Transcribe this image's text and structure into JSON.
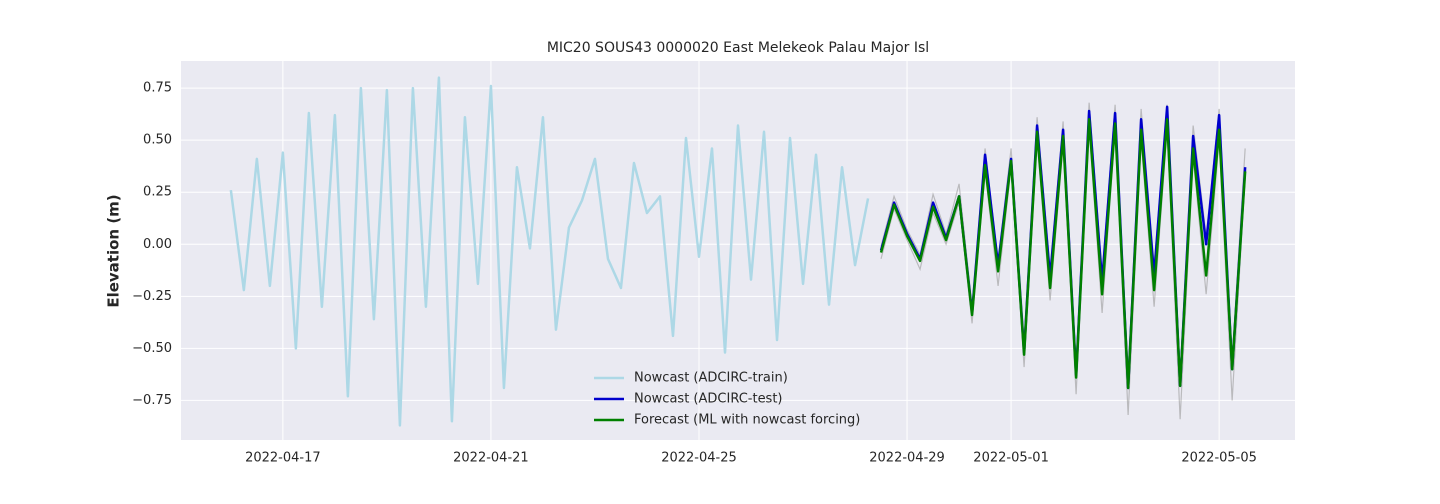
{
  "chart_data": {
    "type": "line",
    "title": "MIC20 SOUS43 0000020 East Melekeok Palau Major Isl",
    "y_label": "Elevation (m)",
    "xlim": [
      "2022-04-15T01:00",
      "2022-05-06T11:00"
    ],
    "xticks": [
      "2022-04-17",
      "2022-04-21",
      "2022-04-25",
      "2022-04-29",
      "2022-05-01",
      "2022-05-05"
    ],
    "ylim": [
      -0.94,
      0.88
    ],
    "yticks": [
      {
        "value": -0.75,
        "label": "−0.75"
      },
      {
        "value": -0.5,
        "label": "−0.50"
      },
      {
        "value": -0.25,
        "label": "−0.25"
      },
      {
        "value": 0,
        "label": "0.00"
      },
      {
        "value": 0.25,
        "label": "0.25"
      },
      {
        "value": 0.5,
        "label": "0.50"
      },
      {
        "value": 0.75,
        "label": "0.75"
      }
    ],
    "grid": true,
    "legend": "lower center",
    "band": {
      "color": "#999999",
      "x": [
        "2022-04-28T12:00",
        "2022-04-28T18:00",
        "2022-04-29T00:00",
        "2022-04-29T06:00",
        "2022-04-29T12:00",
        "2022-04-29T18:00",
        "2022-04-30T00:00",
        "2022-04-30T06:00",
        "2022-04-30T12:00",
        "2022-04-30T18:00",
        "2022-05-01T00:00",
        "2022-05-01T06:00",
        "2022-05-01T12:00",
        "2022-05-01T18:00",
        "2022-05-02T00:00",
        "2022-05-02T06:00",
        "2022-05-02T12:00",
        "2022-05-02T18:00",
        "2022-05-03T00:00",
        "2022-05-03T06:00",
        "2022-05-03T12:00",
        "2022-05-03T18:00",
        "2022-05-04T00:00",
        "2022-05-04T06:00",
        "2022-05-04T12:00",
        "2022-05-04T18:00",
        "2022-05-05T00:00",
        "2022-05-05T06:00",
        "2022-05-05T12:00"
      ],
      "upper": [
        -0.01,
        0.23,
        0.07,
        -0.05,
        0.24,
        0.05,
        0.29,
        -0.3,
        0.46,
        -0.08,
        0.46,
        -0.46,
        0.61,
        -0.12,
        0.59,
        -0.58,
        0.68,
        -0.14,
        0.67,
        -0.62,
        0.65,
        -0.1,
        0.67,
        -0.62,
        0.57,
        0.04,
        0.65,
        -0.55,
        0.46
      ],
      "lower": [
        -0.07,
        0.17,
        0.02,
        -0.12,
        0.15,
        0.0,
        0.2,
        -0.38,
        0.35,
        -0.2,
        0.37,
        -0.59,
        0.5,
        -0.27,
        0.48,
        -0.72,
        0.56,
        -0.33,
        0.55,
        -0.82,
        0.5,
        -0.3,
        0.55,
        -0.84,
        0.42,
        -0.24,
        0.5,
        -0.75,
        0.33
      ]
    },
    "series": [
      {
        "name": "Nowcast (ADCIRC-train)",
        "color": "#add8e6",
        "x": [
          "2022-04-16T00:00",
          "2022-04-16T06:00",
          "2022-04-16T12:00",
          "2022-04-16T18:00",
          "2022-04-17T00:00",
          "2022-04-17T06:00",
          "2022-04-17T12:00",
          "2022-04-17T18:00",
          "2022-04-18T00:00",
          "2022-04-18T06:00",
          "2022-04-18T12:00",
          "2022-04-18T18:00",
          "2022-04-19T00:00",
          "2022-04-19T06:00",
          "2022-04-19T12:00",
          "2022-04-19T18:00",
          "2022-04-20T00:00",
          "2022-04-20T06:00",
          "2022-04-20T12:00",
          "2022-04-20T18:00",
          "2022-04-21T00:00",
          "2022-04-21T06:00",
          "2022-04-21T12:00",
          "2022-04-21T18:00",
          "2022-04-22T00:00",
          "2022-04-22T06:00",
          "2022-04-22T12:00",
          "2022-04-22T18:00",
          "2022-04-23T00:00",
          "2022-04-23T06:00",
          "2022-04-23T12:00",
          "2022-04-23T18:00",
          "2022-04-24T00:00",
          "2022-04-24T06:00",
          "2022-04-24T12:00",
          "2022-04-24T18:00",
          "2022-04-25T00:00",
          "2022-04-25T06:00",
          "2022-04-25T12:00",
          "2022-04-25T18:00",
          "2022-04-26T00:00",
          "2022-04-26T06:00",
          "2022-04-26T12:00",
          "2022-04-26T18:00",
          "2022-04-27T00:00",
          "2022-04-27T06:00",
          "2022-04-27T12:00",
          "2022-04-27T18:00",
          "2022-04-28T00:00",
          "2022-04-28T06:00"
        ],
        "values": [
          0.26,
          -0.22,
          0.41,
          -0.2,
          0.44,
          -0.5,
          0.63,
          -0.3,
          0.62,
          -0.73,
          0.75,
          -0.36,
          0.74,
          -0.87,
          0.75,
          -0.3,
          0.8,
          -0.85,
          0.61,
          -0.19,
          0.76,
          -0.69,
          0.37,
          -0.02,
          0.61,
          -0.41,
          0.08,
          0.21,
          0.41,
          -0.07,
          -0.21,
          0.39,
          0.15,
          0.23,
          -0.44,
          0.51,
          -0.06,
          0.46,
          -0.52,
          0.57,
          -0.17,
          0.54,
          -0.46,
          0.51,
          -0.19,
          0.43,
          -0.29,
          0.37,
          -0.1,
          0.22
        ]
      },
      {
        "name": "Nowcast (ADCIRC-test)",
        "color": "#0000cc",
        "x": [
          "2022-04-28T12:00",
          "2022-04-28T18:00",
          "2022-04-29T00:00",
          "2022-04-29T06:00",
          "2022-04-29T12:00",
          "2022-04-29T18:00",
          "2022-04-30T00:00",
          "2022-04-30T06:00",
          "2022-04-30T12:00",
          "2022-04-30T18:00",
          "2022-05-01T00:00",
          "2022-05-01T06:00",
          "2022-05-01T12:00",
          "2022-05-01T18:00",
          "2022-05-02T00:00",
          "2022-05-02T06:00",
          "2022-05-02T12:00",
          "2022-05-02T18:00",
          "2022-05-03T00:00",
          "2022-05-03T06:00",
          "2022-05-03T12:00",
          "2022-05-03T18:00",
          "2022-05-04T00:00",
          "2022-05-04T06:00",
          "2022-05-04T12:00",
          "2022-05-04T18:00",
          "2022-05-05T00:00",
          "2022-05-05T06:00",
          "2022-05-05T12:00"
        ],
        "values": [
          -0.03,
          0.2,
          0.05,
          -0.07,
          0.2,
          0.03,
          0.23,
          -0.33,
          0.43,
          -0.1,
          0.41,
          -0.52,
          0.57,
          -0.16,
          0.55,
          -0.63,
          0.64,
          -0.18,
          0.63,
          -0.69,
          0.6,
          -0.15,
          0.66,
          -0.68,
          0.52,
          0.0,
          0.62,
          -0.6,
          0.37
        ]
      },
      {
        "name": "Forecast (ML with nowcast forcing)",
        "color": "#008000",
        "x": [
          "2022-04-28T12:00",
          "2022-04-28T18:00",
          "2022-04-29T00:00",
          "2022-04-29T06:00",
          "2022-04-29T12:00",
          "2022-04-29T18:00",
          "2022-04-30T00:00",
          "2022-04-30T06:00",
          "2022-04-30T12:00",
          "2022-04-30T18:00",
          "2022-05-01T00:00",
          "2022-05-01T06:00",
          "2022-05-01T12:00",
          "2022-05-01T18:00",
          "2022-05-02T00:00",
          "2022-05-02T06:00",
          "2022-05-02T12:00",
          "2022-05-02T18:00",
          "2022-05-03T00:00",
          "2022-05-03T06:00",
          "2022-05-03T12:00",
          "2022-05-03T18:00",
          "2022-05-04T00:00",
          "2022-05-04T06:00",
          "2022-05-04T12:00",
          "2022-05-04T18:00",
          "2022-05-05T00:00",
          "2022-05-05T06:00",
          "2022-05-05T12:00"
        ],
        "values": [
          -0.04,
          0.19,
          0.04,
          -0.08,
          0.18,
          0.02,
          0.23,
          -0.34,
          0.38,
          -0.13,
          0.4,
          -0.53,
          0.54,
          -0.21,
          0.52,
          -0.64,
          0.6,
          -0.24,
          0.58,
          -0.69,
          0.55,
          -0.22,
          0.6,
          -0.68,
          0.46,
          -0.15,
          0.55,
          -0.6,
          0.35
        ]
      }
    ]
  }
}
